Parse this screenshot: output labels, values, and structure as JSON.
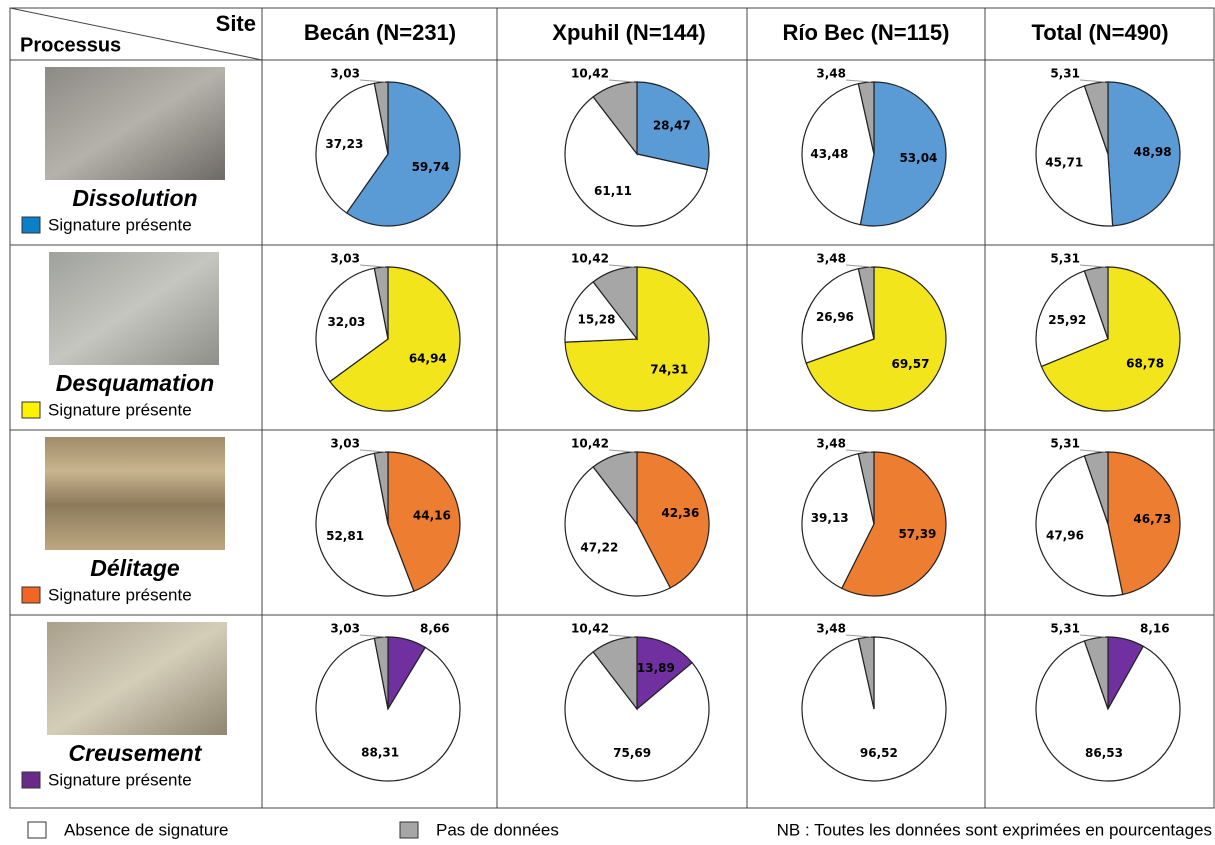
{
  "table": {
    "corner_top": "Site",
    "corner_bottom": "Processus",
    "columns": [
      "Becán (N=231)",
      "Xpuhil (N=144)",
      "Río Bec (N=115)",
      "Total (N=490)"
    ],
    "rows": [
      {
        "process": "Dissolution",
        "legend": "Signature présente",
        "color": "#0b7fc7"
      },
      {
        "process": "Desquamation",
        "legend": "Signature présente",
        "color": "#fff200"
      },
      {
        "process": "Délitage",
        "legend": "Signature présente",
        "color": "#f26522"
      },
      {
        "process": "Creusement",
        "legend": "Signature présente",
        "color": "#6a2a8a"
      }
    ]
  },
  "legend": [
    {
      "label": "Absence de signature",
      "color": "#ffffff"
    },
    {
      "label": "Pas de données",
      "color": "#a6a6a6"
    }
  ],
  "note": "NB : Toutes les données sont exprimées en pourcentages",
  "chart_data": [
    {
      "type": "pie",
      "values": [
        59.74,
        37.23,
        3.03
      ],
      "value_labels": [
        "59,74",
        "37,23",
        "3,03"
      ],
      "colors": [
        "#5b9bd5",
        "#ffffff",
        "#a6a6a6"
      ]
    },
    {
      "type": "pie",
      "values": [
        28.47,
        61.11,
        10.42
      ],
      "value_labels": [
        "28,47",
        "61,11",
        "10,42"
      ],
      "colors": [
        "#5b9bd5",
        "#ffffff",
        "#a6a6a6"
      ]
    },
    {
      "type": "pie",
      "values": [
        53.04,
        43.48,
        3.48
      ],
      "value_labels": [
        "53,04",
        "43,48",
        "3,48"
      ],
      "colors": [
        "#5b9bd5",
        "#ffffff",
        "#a6a6a6"
      ]
    },
    {
      "type": "pie",
      "values": [
        48.98,
        45.71,
        5.31
      ],
      "value_labels": [
        "48,98",
        "45,71",
        "5,31"
      ],
      "colors": [
        "#5b9bd5",
        "#ffffff",
        "#a6a6a6"
      ]
    },
    {
      "type": "pie",
      "values": [
        64.94,
        32.03,
        3.03
      ],
      "value_labels": [
        "64,94",
        "32,03",
        "3,03"
      ],
      "colors": [
        "#f2e51b",
        "#ffffff",
        "#a6a6a6"
      ]
    },
    {
      "type": "pie",
      "values": [
        74.31,
        15.28,
        10.42
      ],
      "value_labels": [
        "74,31",
        "15,28",
        "10,42"
      ],
      "colors": [
        "#f2e51b",
        "#ffffff",
        "#a6a6a6"
      ]
    },
    {
      "type": "pie",
      "values": [
        69.57,
        26.96,
        3.48
      ],
      "value_labels": [
        "69,57",
        "26,96",
        "3,48"
      ],
      "colors": [
        "#f2e51b",
        "#ffffff",
        "#a6a6a6"
      ]
    },
    {
      "type": "pie",
      "values": [
        68.78,
        25.92,
        5.31
      ],
      "value_labels": [
        "68,78",
        "25,92",
        "5,31"
      ],
      "colors": [
        "#f2e51b",
        "#ffffff",
        "#a6a6a6"
      ]
    },
    {
      "type": "pie",
      "values": [
        44.16,
        52.81,
        3.03
      ],
      "value_labels": [
        "44,16",
        "52,81",
        "3,03"
      ],
      "colors": [
        "#ed7d31",
        "#ffffff",
        "#a6a6a6"
      ]
    },
    {
      "type": "pie",
      "values": [
        42.36,
        47.22,
        10.42
      ],
      "value_labels": [
        "42,36",
        "47,22",
        "10,42"
      ],
      "colors": [
        "#ed7d31",
        "#ffffff",
        "#a6a6a6"
      ]
    },
    {
      "type": "pie",
      "values": [
        57.39,
        39.13,
        3.48
      ],
      "value_labels": [
        "57,39",
        "39,13",
        "3,48"
      ],
      "colors": [
        "#ed7d31",
        "#ffffff",
        "#a6a6a6"
      ]
    },
    {
      "type": "pie",
      "values": [
        46.73,
        47.96,
        5.31
      ],
      "value_labels": [
        "46,73",
        "47,96",
        "5,31"
      ],
      "colors": [
        "#ed7d31",
        "#ffffff",
        "#a6a6a6"
      ]
    },
    {
      "type": "pie",
      "values": [
        8.66,
        88.31,
        3.03
      ],
      "value_labels": [
        "8,66",
        "88,31",
        "3,03"
      ],
      "colors": [
        "#7030a0",
        "#ffffff",
        "#a6a6a6"
      ]
    },
    {
      "type": "pie",
      "values": [
        13.89,
        75.69,
        10.42
      ],
      "value_labels": [
        "13,89",
        "75,69",
        "10,42"
      ],
      "colors": [
        "#7030a0",
        "#ffffff",
        "#a6a6a6"
      ]
    },
    {
      "type": "pie",
      "values": [
        96.52,
        3.48
      ],
      "value_labels": [
        "96,52",
        "3,48"
      ],
      "colors": [
        "#ffffff",
        "#a6a6a6"
      ]
    },
    {
      "type": "pie",
      "values": [
        8.16,
        86.53,
        5.31
      ],
      "value_labels": [
        "8,16",
        "86,53",
        "5,31"
      ],
      "colors": [
        "#7030a0",
        "#ffffff",
        "#a6a6a6"
      ]
    }
  ]
}
